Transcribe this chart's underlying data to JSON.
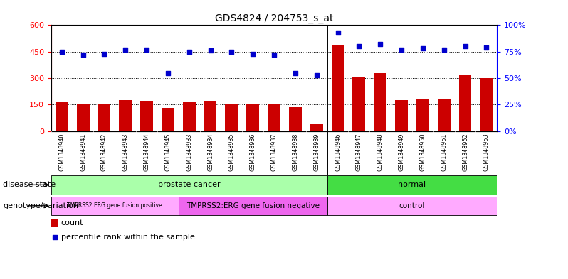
{
  "title": "GDS4824 / 204753_s_at",
  "samples": [
    "GSM1348940",
    "GSM1348941",
    "GSM1348942",
    "GSM1348943",
    "GSM1348944",
    "GSM1348945",
    "GSM1348933",
    "GSM1348934",
    "GSM1348935",
    "GSM1348936",
    "GSM1348937",
    "GSM1348938",
    "GSM1348939",
    "GSM1348946",
    "GSM1348947",
    "GSM1348948",
    "GSM1348949",
    "GSM1348950",
    "GSM1348951",
    "GSM1348952",
    "GSM1348953"
  ],
  "counts": [
    165,
    150,
    155,
    175,
    170,
    130,
    165,
    170,
    155,
    155,
    150,
    135,
    45,
    490,
    305,
    330,
    175,
    185,
    185,
    315,
    300
  ],
  "percentiles": [
    75,
    72,
    73,
    77,
    77,
    55,
    75,
    76,
    75,
    73,
    72,
    55,
    53,
    93,
    80,
    82,
    77,
    78,
    77,
    80,
    79
  ],
  "ylim_left": [
    0,
    600
  ],
  "ylim_right": [
    0,
    100
  ],
  "yticks_left": [
    0,
    150,
    300,
    450,
    600
  ],
  "yticks_right": [
    0,
    25,
    50,
    75,
    100
  ],
  "bar_color": "#cc0000",
  "dot_color": "#0000cc",
  "disease_state_label": "disease state",
  "genotype_label": "genotype/variation",
  "disease_groups": [
    {
      "label": "prostate cancer",
      "start": 0,
      "end": 13,
      "color": "#aaffaa"
    },
    {
      "label": "normal",
      "start": 13,
      "end": 21,
      "color": "#44dd44"
    }
  ],
  "genotype_groups": [
    {
      "label": "TMPRSS2:ERG gene fusion positive",
      "start": 0,
      "end": 6,
      "color": "#ffaaff"
    },
    {
      "label": "TMPRSS2:ERG gene fusion negative",
      "start": 6,
      "end": 13,
      "color": "#ee66ee"
    },
    {
      "label": "control",
      "start": 13,
      "end": 21,
      "color": "#ffaaff"
    }
  ],
  "legend_count_label": "count",
  "legend_percentile_label": "percentile rank within the sample",
  "bg_color": "#ffffff",
  "tick_bg_color": "#dddddd",
  "separator1": 5.5,
  "separator2": 12.5
}
